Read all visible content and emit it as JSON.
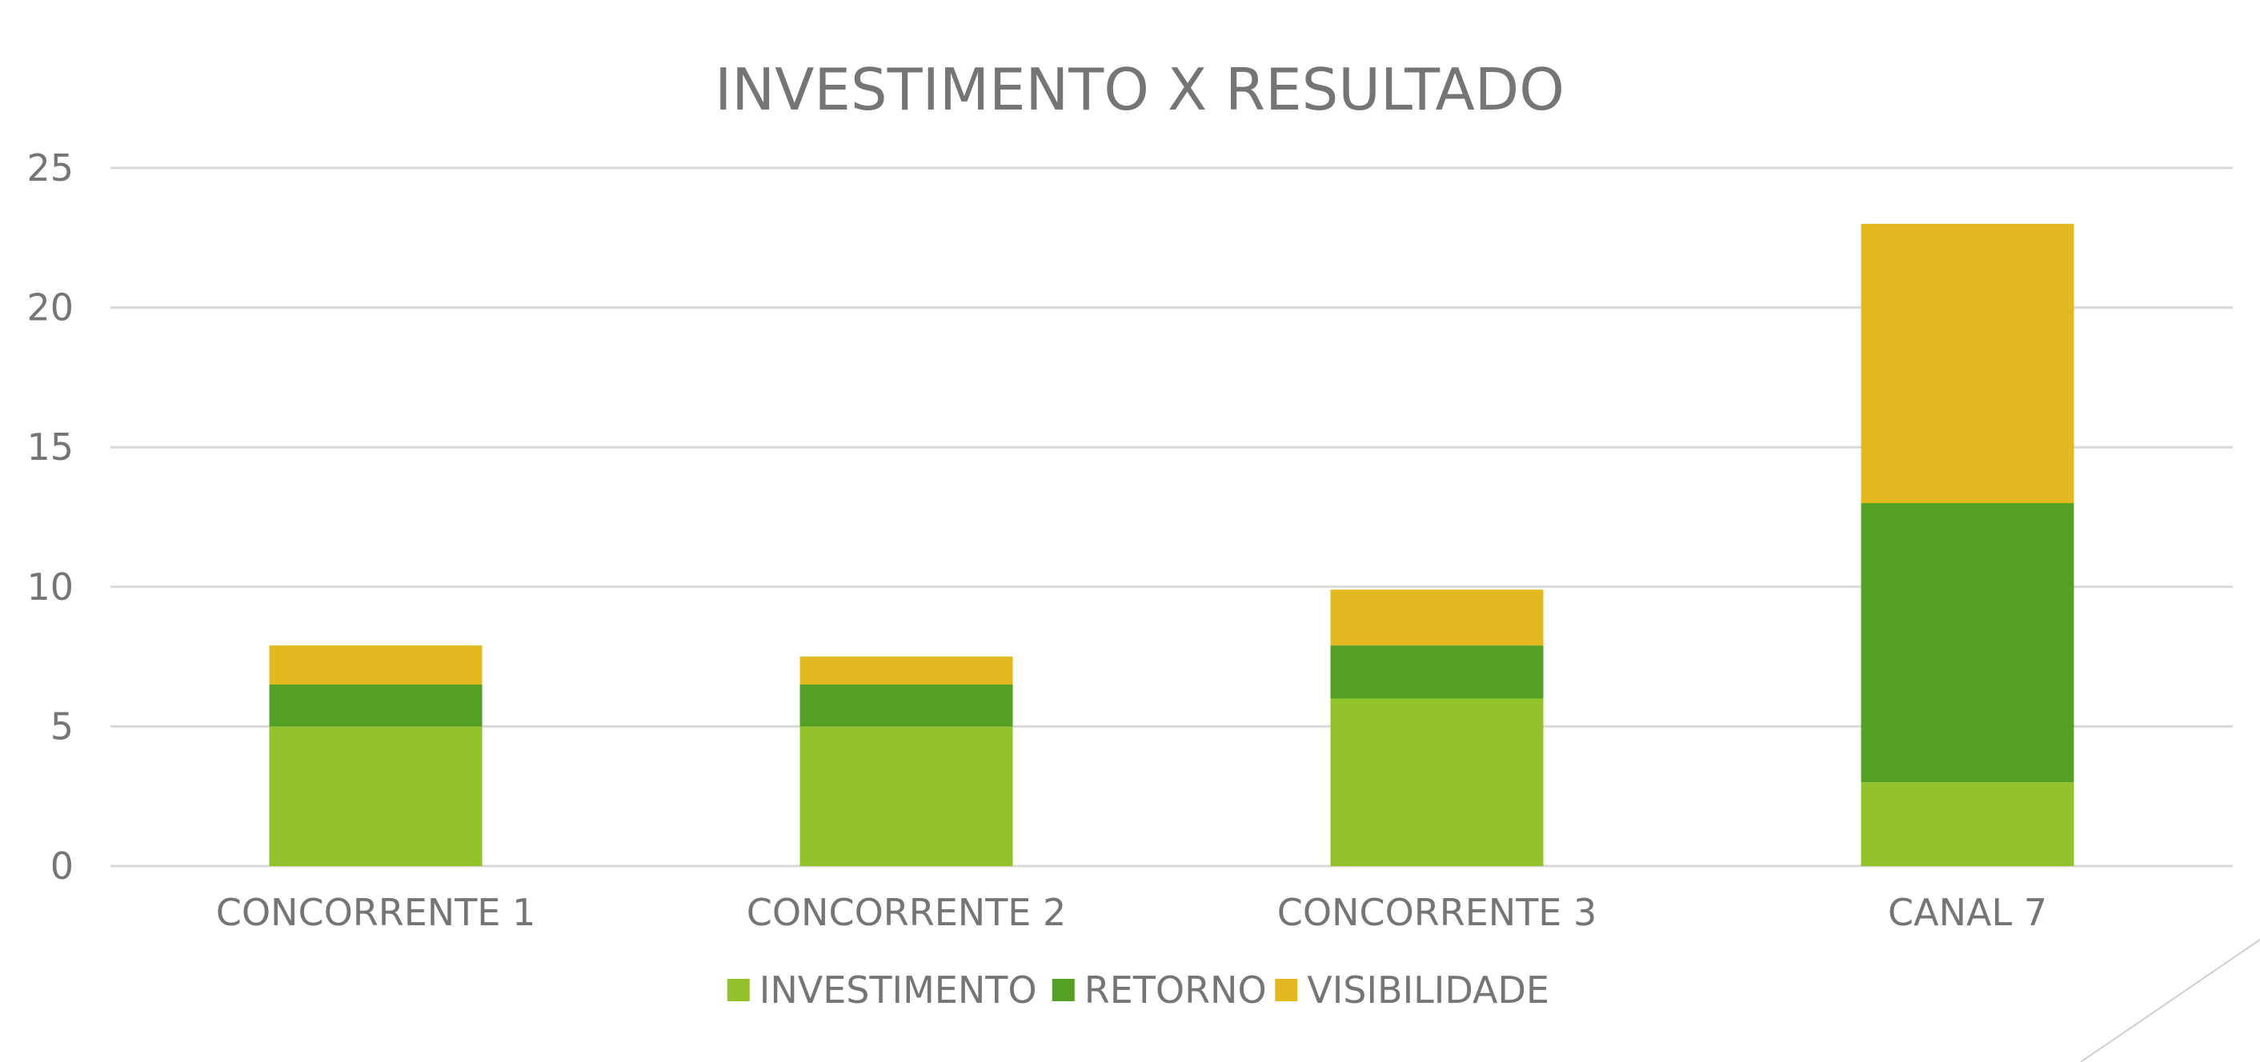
{
  "chart_data": {
    "type": "bar",
    "stacked": true,
    "title": "INVESTIMENTO X RESULTADO",
    "xlabel": "",
    "ylabel": "",
    "ylim": [
      0,
      25
    ],
    "yticks": [
      0,
      5,
      10,
      15,
      20,
      25
    ],
    "grid": true,
    "legend_position": "bottom",
    "categories": [
      "CONCORRENTE 1",
      "CONCORRENTE 2",
      "CONCORRENTE 3",
      "CANAL 7"
    ],
    "series": [
      {
        "name": "INVESTIMENTO",
        "color": "#92c22a",
        "values": [
          5,
          5,
          6,
          3
        ]
      },
      {
        "name": "RETORNO",
        "color": "#54a025",
        "values": [
          1.5,
          1.5,
          1.9,
          10
        ]
      },
      {
        "name": "VISIBILIDADE",
        "color": "#e3b920",
        "values": [
          1.4,
          1,
          2,
          10
        ]
      }
    ]
  }
}
